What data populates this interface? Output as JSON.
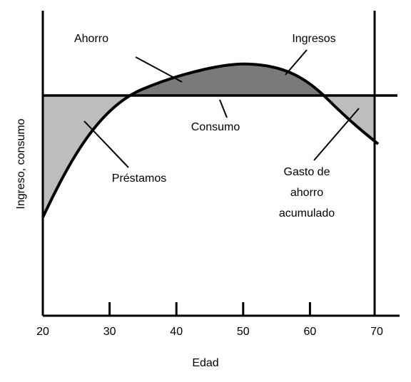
{
  "labels": {
    "ahorro": "Ahorro",
    "ingresos": "Ingresos",
    "consumo": "Consumo",
    "prestamos": "Préstamos",
    "gasto": [
      "Gasto de",
      "ahorro",
      "acumulado"
    ]
  },
  "axes": {
    "y_label": "Ingreso, consumo",
    "x_label": "Edad",
    "x_ticks": [
      20,
      30,
      40,
      50,
      60,
      70
    ]
  }
}
